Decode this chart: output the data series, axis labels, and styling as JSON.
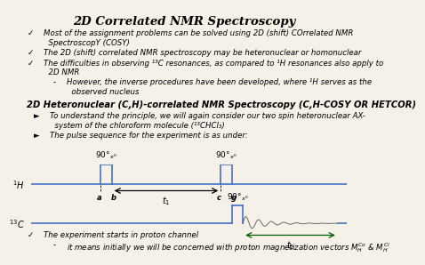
{
  "title": "2D Correlated NMR Spectroscopy",
  "bg_color": "#f5f0e8",
  "text_color": "#000000",
  "bullet1": "Most of the assignment problems can be solved using 2D (shift) COrrelated NMR\n  SpectroscopY (COSY)",
  "bullet2": "The 2D (shift) correlated NMR spectroscopy may be heteronuclear or homonuclear",
  "bullet3": "The difficulties in observing ¹³C resonances, as compared to ¹H resonances also apply to\n  2D NMR",
  "sub_bullet": "However, the inverse procedures have been developed, where ¹H serves as the\n    observed nucleus",
  "section2": "2D Heteronuclear (C,H)-correlated NMR Spectroscopy (C,H-COSY OR HETCOR)",
  "arrow1": "To understand the principle, we will again consider our two spin heteronuclear AX-\n  system of the chloroform molecule (¹³CHCl₃)",
  "arrow2": "The pulse sequence for the experiment is as under:",
  "footer1": "The experiment starts in proton channel",
  "footer2": "it means initially we will be concerned with proton magnetization vectors Mᴴᶜᵃ & Mᴴᶜᵇ",
  "pulse_color": "#4472c4",
  "fid_color": "#808080",
  "arrow_color": "#006400"
}
